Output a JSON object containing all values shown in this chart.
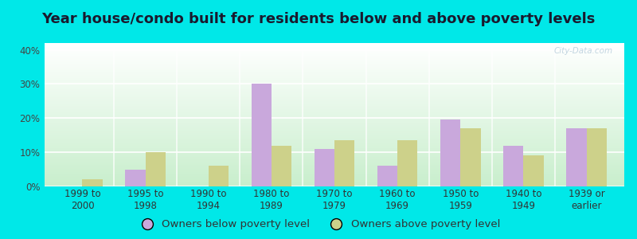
{
  "title": "Year house/condo built for residents below and above poverty levels",
  "categories": [
    "1999 to\n2000",
    "1995 to\n1998",
    "1990 to\n1994",
    "1980 to\n1989",
    "1970 to\n1979",
    "1960 to\n1969",
    "1950 to\n1959",
    "1940 to\n1949",
    "1939 or\nearlier"
  ],
  "below_poverty": [
    0.0,
    5.0,
    0.0,
    30.0,
    11.0,
    6.0,
    19.5,
    12.0,
    17.0
  ],
  "above_poverty": [
    2.0,
    10.0,
    6.0,
    12.0,
    13.5,
    13.5,
    17.0,
    9.0,
    17.0
  ],
  "below_color": "#c9a8dc",
  "above_color": "#cdd18a",
  "background_outer": "#00e8e8",
  "background_inner_top": "#ffffff",
  "background_inner_bottom": "#c8eecc",
  "ylim": [
    0,
    42
  ],
  "yticks": [
    0,
    10,
    20,
    30,
    40
  ],
  "ytick_labels": [
    "0%",
    "10%",
    "20%",
    "30%",
    "40%"
  ],
  "legend_below": "Owners below poverty level",
  "legend_above": "Owners above poverty level",
  "title_fontsize": 13,
  "tick_fontsize": 8.5,
  "legend_fontsize": 9.5,
  "watermark": "City-Data.com"
}
